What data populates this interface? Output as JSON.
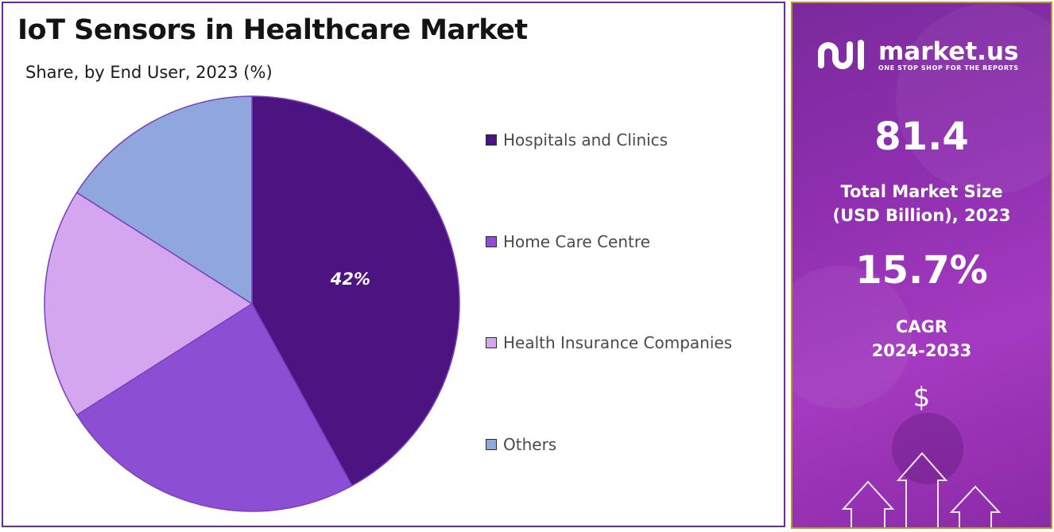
{
  "chart_data": {
    "type": "pie",
    "title": "IoT Sensors in Healthcare Market",
    "subtitle": "Share, by End User, 2023 (%)",
    "categories": [
      "Hospitals and Clinics",
      "Home Care Centre",
      "Health Insurance Companies",
      "Others"
    ],
    "values": [
      42,
      24,
      18,
      16
    ],
    "colors": [
      "#4b1480",
      "#8c4fd4",
      "#d4a6ef",
      "#8fa7dc"
    ],
    "data_labels": [
      "42%",
      "",
      "",
      ""
    ],
    "start_angle_deg": 0,
    "direction": "clockwise",
    "legend_position": "right"
  },
  "sidebar": {
    "brand": {
      "name": "market.us",
      "tagline": "ONE STOP SHOP FOR THE REPORTS",
      "logo_icon": "market-us-logo-icon"
    },
    "market_size": {
      "value": "81.4",
      "label_line1": "Total Market Size",
      "label_line2": "(USD Billion), 2023"
    },
    "cagr": {
      "value": "15.7%",
      "label_line1": "CAGR",
      "label_line2": "2024-2033"
    },
    "currency_symbol": "$",
    "accent_color": "#9b35b8",
    "border_color": "#b9962a"
  }
}
